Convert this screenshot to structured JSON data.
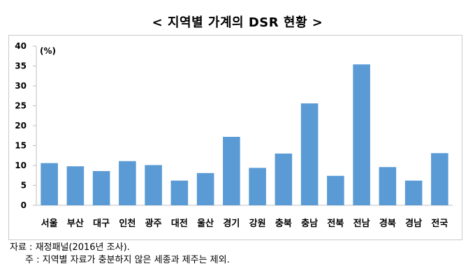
{
  "chart_data": {
    "type": "bar",
    "title": "< 지역별 가계의 DSR 현황 >",
    "unit_label": "(%)",
    "categories": [
      "서울",
      "부산",
      "대구",
      "인천",
      "광주",
      "대전",
      "울산",
      "경기",
      "강원",
      "충북",
      "충남",
      "전북",
      "전남",
      "경북",
      "경남",
      "전국"
    ],
    "values": [
      10.6,
      9.8,
      8.6,
      11.1,
      10.1,
      6.2,
      8.1,
      17.2,
      9.4,
      13.0,
      25.6,
      7.4,
      35.4,
      9.6,
      6.2,
      13.1
    ],
    "yticks": [
      0,
      5,
      10,
      15,
      20,
      25,
      30,
      35,
      40
    ],
    "ylim": [
      0,
      40
    ],
    "grid": false,
    "bar_color": "#5b9bd5"
  },
  "notes": {
    "source": "자료 : 재정패널(2016년 조사).",
    "footnote": "주 : 지역별 자료가 충분하지 않은 세종과 제주는 제외."
  }
}
